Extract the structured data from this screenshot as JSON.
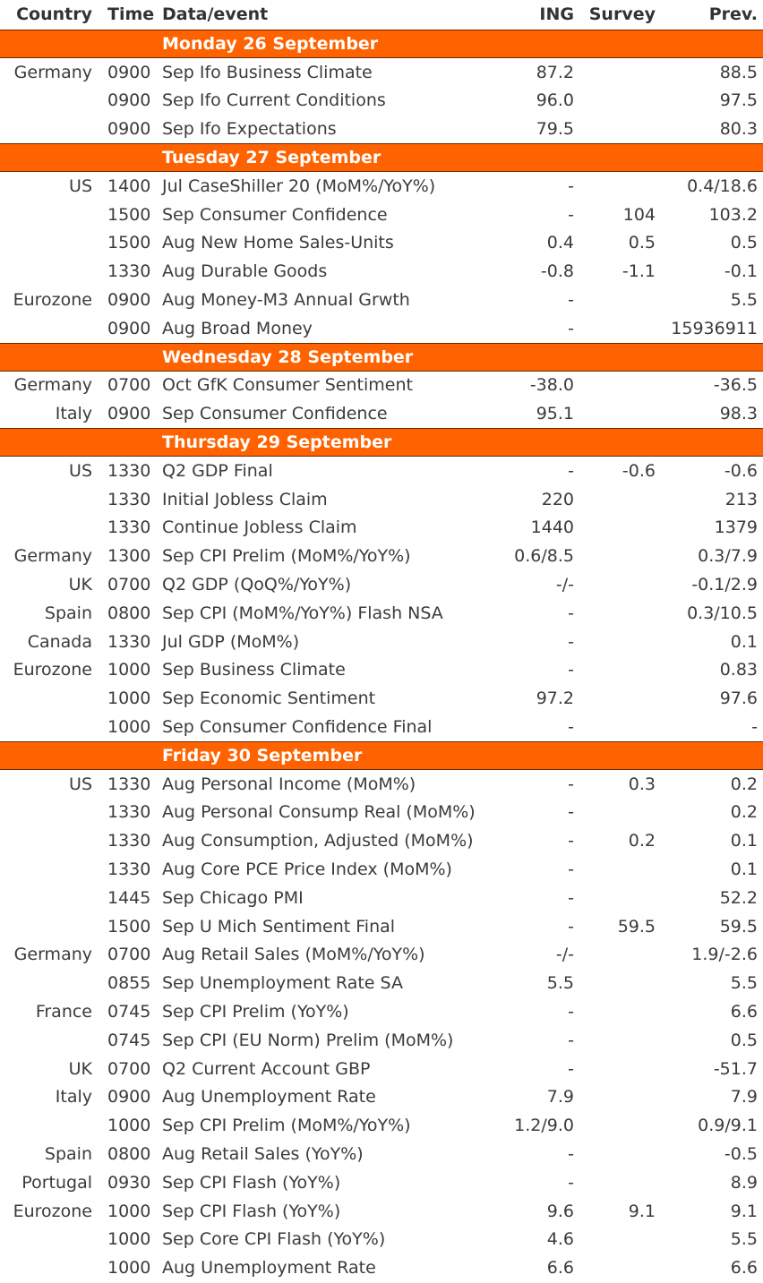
{
  "headers": {
    "country": "Country",
    "time": "Time",
    "event": "Data/event",
    "ing": "ING",
    "survey": "Survey",
    "prev": "Prev."
  },
  "days": [
    {
      "label": "Monday 26 September",
      "rows": [
        {
          "country": "Germany",
          "time": "0900",
          "event": "Sep Ifo Business Climate",
          "ing": "87.2",
          "survey": "",
          "prev": "88.5"
        },
        {
          "country": "",
          "time": "0900",
          "event": "Sep Ifo Current Conditions",
          "ing": "96.0",
          "survey": "",
          "prev": "97.5"
        },
        {
          "country": "",
          "time": "0900",
          "event": "Sep Ifo Expectations",
          "ing": "79.5",
          "survey": "",
          "prev": "80.3"
        }
      ]
    },
    {
      "label": "Tuesday 27 September",
      "rows": [
        {
          "country": "US",
          "time": "1400",
          "event": "Jul CaseShiller 20 (MoM%/YoY%)",
          "ing": "-",
          "survey": "",
          "prev": "0.4/18.6"
        },
        {
          "country": "",
          "time": "1500",
          "event": "Sep Consumer Confidence",
          "ing": "-",
          "survey": "104",
          "prev": "103.2"
        },
        {
          "country": "",
          "time": "1500",
          "event": "Aug New Home Sales-Units",
          "ing": "0.4",
          "survey": "0.5",
          "prev": "0.5"
        },
        {
          "country": "",
          "time": "1330",
          "event": "Aug Durable Goods",
          "ing": "-0.8",
          "survey": "-1.1",
          "prev": "-0.1"
        },
        {
          "country": "Eurozone",
          "time": "0900",
          "event": "Aug Money-M3 Annual Grwth",
          "ing": "-",
          "survey": "",
          "prev": "5.5"
        },
        {
          "country": "",
          "time": "0900",
          "event": "Aug Broad Money",
          "ing": "-",
          "survey": "",
          "prev": "15936911"
        }
      ]
    },
    {
      "label": "Wednesday 28 September",
      "rows": [
        {
          "country": "Germany",
          "time": "0700",
          "event": "Oct GfK Consumer Sentiment",
          "ing": "-38.0",
          "survey": "",
          "prev": "-36.5"
        },
        {
          "country": "Italy",
          "time": "0900",
          "event": "Sep Consumer Confidence",
          "ing": "95.1",
          "survey": "",
          "prev": "98.3"
        }
      ]
    },
    {
      "label": "Thursday 29 September",
      "rows": [
        {
          "country": "US",
          "time": "1330",
          "event": "Q2 GDP Final",
          "ing": "-",
          "survey": "-0.6",
          "prev": "-0.6"
        },
        {
          "country": "",
          "time": "1330",
          "event": "Initial Jobless Claim",
          "ing": "220",
          "survey": "",
          "prev": "213"
        },
        {
          "country": "",
          "time": "1330",
          "event": "Continue Jobless Claim",
          "ing": "1440",
          "survey": "",
          "prev": "1379"
        },
        {
          "country": "Germany",
          "time": "1300",
          "event": "Sep CPI Prelim (MoM%/YoY%)",
          "ing": "0.6/8.5",
          "survey": "",
          "prev": "0.3/7.9"
        },
        {
          "country": "UK",
          "time": "0700",
          "event": "Q2 GDP (QoQ%/YoY%)",
          "ing": "-/-",
          "survey": "",
          "prev": "-0.1/2.9"
        },
        {
          "country": "Spain",
          "time": "0800",
          "event": "Sep CPI (MoM%/YoY%) Flash NSA",
          "ing": "-",
          "survey": "",
          "prev": "0.3/10.5"
        },
        {
          "country": "Canada",
          "time": "1330",
          "event": "Jul GDP (MoM%)",
          "ing": "-",
          "survey": "",
          "prev": "0.1"
        },
        {
          "country": "Eurozone",
          "time": "1000",
          "event": "Sep Business Climate",
          "ing": "-",
          "survey": "",
          "prev": "0.83"
        },
        {
          "country": "",
          "time": "1000",
          "event": "Sep Economic Sentiment",
          "ing": "97.2",
          "survey": "",
          "prev": "97.6"
        },
        {
          "country": "",
          "time": "1000",
          "event": "Sep Consumer Confidence Final",
          "ing": "-",
          "survey": "",
          "prev": "-"
        }
      ]
    },
    {
      "label": "Friday 30 September",
      "rows": [
        {
          "country": "US",
          "time": "1330",
          "event": "Aug Personal Income (MoM%)",
          "ing": "-",
          "survey": "0.3",
          "prev": "0.2"
        },
        {
          "country": "",
          "time": "1330",
          "event": "Aug Personal Consump Real (MoM%)",
          "ing": "-",
          "survey": "",
          "prev": "0.2"
        },
        {
          "country": "",
          "time": "1330",
          "event": "Aug Consumption, Adjusted (MoM%)",
          "ing": "-",
          "survey": "0.2",
          "prev": "0.1"
        },
        {
          "country": "",
          "time": "1330",
          "event": "Aug Core PCE Price Index (MoM%)",
          "ing": "-",
          "survey": "",
          "prev": "0.1"
        },
        {
          "country": "",
          "time": "1445",
          "event": "Sep Chicago PMI",
          "ing": "-",
          "survey": "",
          "prev": "52.2"
        },
        {
          "country": "",
          "time": "1500",
          "event": "Sep U Mich Sentiment Final",
          "ing": "-",
          "survey": "59.5",
          "prev": "59.5"
        },
        {
          "country": "Germany",
          "time": "0700",
          "event": "Aug Retail Sales (MoM%/YoY%)",
          "ing": "-/-",
          "survey": "",
          "prev": "1.9/-2.6"
        },
        {
          "country": "",
          "time": "0855",
          "event": "Sep Unemployment Rate SA",
          "ing": "5.5",
          "survey": "",
          "prev": "5.5"
        },
        {
          "country": "France",
          "time": "0745",
          "event": "Sep CPI  Prelim (YoY%)",
          "ing": "-",
          "survey": "",
          "prev": "6.6"
        },
        {
          "country": "",
          "time": "0745",
          "event": "Sep CPI (EU Norm) Prelim (MoM%)",
          "ing": "-",
          "survey": "",
          "prev": "0.5"
        },
        {
          "country": "UK",
          "time": "0700",
          "event": "Q2 Current Account GBP",
          "ing": "-",
          "survey": "",
          "prev": "-51.7"
        },
        {
          "country": "Italy",
          "time": "0900",
          "event": "Aug Unemployment Rate",
          "ing": "7.9",
          "survey": "",
          "prev": "7.9"
        },
        {
          "country": "",
          "time": "1000",
          "event": "Sep CPI Prelim (MoM%/YoY%)",
          "ing": "1.2/9.0",
          "survey": "",
          "prev": "0.9/9.1"
        },
        {
          "country": "Spain",
          "time": "0800",
          "event": "Aug Retail Sales (YoY%)",
          "ing": "-",
          "survey": "",
          "prev": "-0.5"
        },
        {
          "country": "Portugal",
          "time": "0930",
          "event": "Sep CPI Flash (YoY%)",
          "ing": "-",
          "survey": "",
          "prev": "8.9"
        },
        {
          "country": "Eurozone",
          "time": "1000",
          "event": "Sep CPI Flash (YoY%)",
          "ing": "9.6",
          "survey": "9.1",
          "prev": "9.1"
        },
        {
          "country": "",
          "time": "1000",
          "event": "Sep Core CPI Flash (YoY%)",
          "ing": "4.6",
          "survey": "",
          "prev": "5.5"
        },
        {
          "country": "",
          "time": "1000",
          "event": "Aug Unemployment Rate",
          "ing": "6.6",
          "survey": "",
          "prev": "6.6"
        }
      ]
    }
  ]
}
